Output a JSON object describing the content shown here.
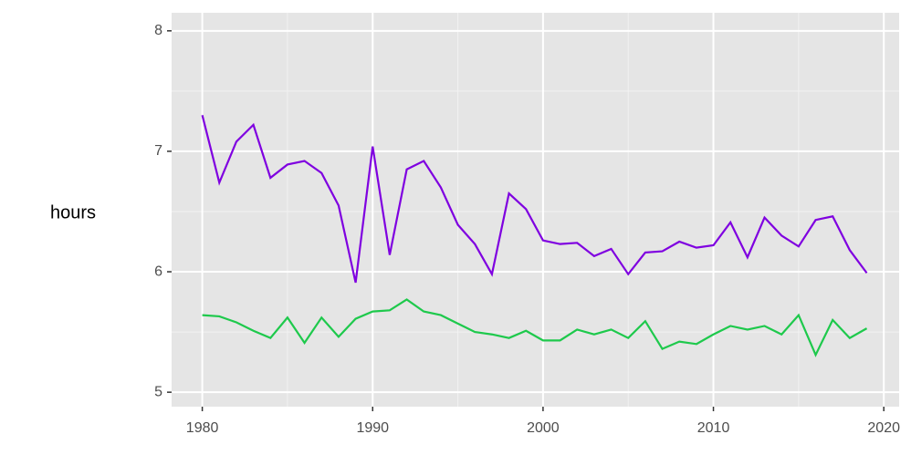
{
  "chart_data": {
    "type": "line",
    "y_label": "hours",
    "x": [
      1980,
      1981,
      1982,
      1983,
      1984,
      1985,
      1986,
      1987,
      1988,
      1989,
      1990,
      1991,
      1992,
      1993,
      1994,
      1995,
      1996,
      1997,
      1998,
      1999,
      2000,
      2001,
      2002,
      2003,
      2004,
      2005,
      2006,
      2007,
      2008,
      2009,
      2010,
      2011,
      2012,
      2013,
      2014,
      2015,
      2016,
      2017,
      2018,
      2019
    ],
    "series": [
      {
        "color": "#7f00e0",
        "values": [
          7.3,
          6.74,
          7.08,
          7.22,
          6.78,
          6.89,
          6.92,
          6.82,
          6.55,
          5.91,
          7.04,
          6.14,
          6.85,
          6.92,
          6.7,
          6.39,
          6.23,
          5.98,
          6.65,
          6.52,
          6.26,
          6.23,
          6.24,
          6.13,
          6.19,
          5.98,
          6.16,
          6.17,
          6.25,
          6.2,
          6.22,
          6.41,
          6.12,
          6.45,
          6.3,
          6.21,
          6.43,
          6.46,
          6.18,
          5.99
        ]
      },
      {
        "color": "#1ec94c",
        "values": [
          5.64,
          5.63,
          5.58,
          5.51,
          5.45,
          5.62,
          5.41,
          5.62,
          5.46,
          5.61,
          5.67,
          5.68,
          5.77,
          5.67,
          5.64,
          5.57,
          5.5,
          5.48,
          5.45,
          5.51,
          5.43,
          5.43,
          5.52,
          5.48,
          5.52,
          5.45,
          5.59,
          5.36,
          5.42,
          5.4,
          5.48,
          5.55,
          5.52,
          5.55,
          5.48,
          5.64,
          5.31,
          5.6,
          5.45,
          5.53
        ]
      }
    ],
    "xlim": [
      1978.2,
      2020.9
    ],
    "xticks": [
      1980,
      1990,
      2000,
      2010,
      2020
    ],
    "ylim": [
      4.88,
      8.15
    ],
    "yticks": [
      5,
      6,
      7,
      8
    ],
    "grid": true
  }
}
